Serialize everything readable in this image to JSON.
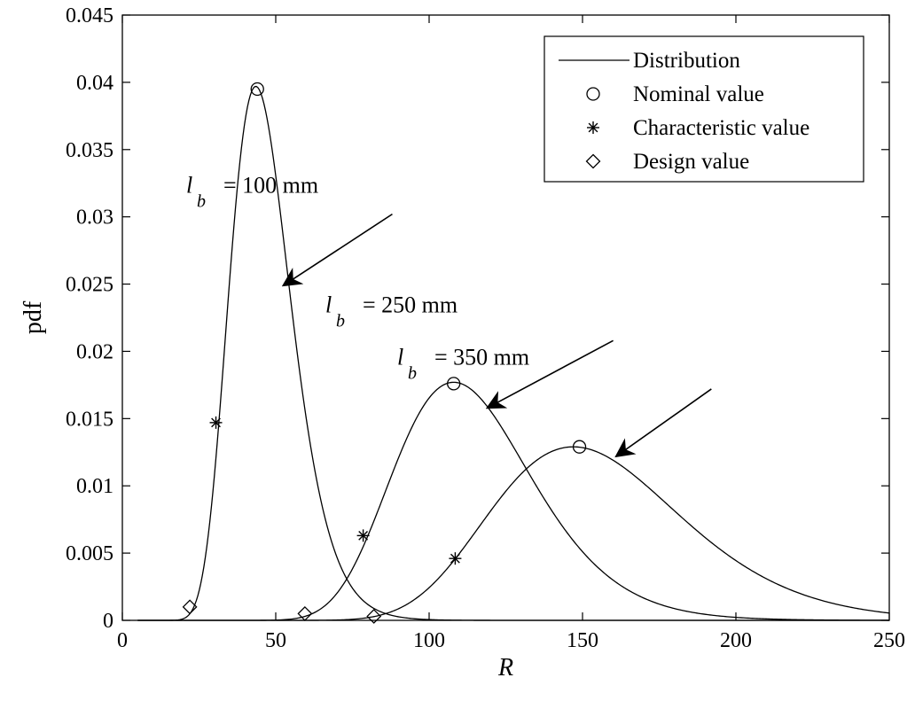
{
  "chart_data": {
    "type": "line",
    "title": "",
    "xlabel": "R",
    "ylabel": "pdf",
    "xlim": [
      0,
      250
    ],
    "ylim": [
      0,
      0.045
    ],
    "x_ticks": [
      0,
      50,
      100,
      150,
      200,
      250
    ],
    "y_ticks": [
      0,
      0.005,
      0.01,
      0.015,
      0.02,
      0.025,
      0.03,
      0.035,
      0.04,
      0.045
    ],
    "x_tick_labels": [
      "0",
      "50",
      "100",
      "150",
      "200",
      "250"
    ],
    "y_tick_labels": [
      "0",
      "0.005",
      "0.01",
      "0.015",
      "0.02",
      "0.025",
      "0.03",
      "0.035",
      "0.04",
      "0.045"
    ],
    "grid": false,
    "legend_position": "top-right",
    "legend": {
      "entries": [
        {
          "label": "Distribution",
          "marker": "line"
        },
        {
          "label": "Nominal value",
          "marker": "circle"
        },
        {
          "label": "Characteristic value",
          "marker": "asterisk"
        },
        {
          "label": "Design value",
          "marker": "diamond"
        }
      ]
    },
    "series": [
      {
        "curve": {
          "mode": 43.5,
          "sigma": 10,
          "peak": 0.0397
        },
        "nominal": {
          "x": 44,
          "y": 0.0395
        },
        "characteristic": {
          "x": 30.5,
          "y": 0.0147
        },
        "design": {
          "x": 22,
          "y": 0.001
        }
      },
      {
        "curve": {
          "mode": 108,
          "sigma": 22.5,
          "peak": 0.0177
        },
        "nominal": {
          "x": 108,
          "y": 0.0176
        },
        "characteristic": {
          "x": 78.5,
          "y": 0.0063
        },
        "design": {
          "x": 59.5,
          "y": 0.0005
        }
      },
      {
        "curve": {
          "mode": 147,
          "sigma": 31,
          "peak": 0.0129
        },
        "nominal": {
          "x": 149,
          "y": 0.0129
        },
        "characteristic": {
          "x": 108.5,
          "y": 0.0046
        },
        "design": {
          "x": 82,
          "y": 0.0003
        }
      }
    ],
    "annotations": [
      {
        "var": "l",
        "sub": "b",
        "text": "= 100 mm",
        "label_x": 210,
        "label_y": 0.0318,
        "arrow_from": [
          88,
          0.0302
        ],
        "arrow_to": [
          52.5,
          0.0249
        ]
      },
      {
        "var": "l",
        "sub": "b",
        "text": "= 250 mm",
        "label_x": 367,
        "label_y": 0.0229,
        "arrow_from": [
          160,
          0.0208
        ],
        "arrow_to": [
          119,
          0.0158
        ]
      },
      {
        "var": "l",
        "sub": "b",
        "text": "= 350 mm",
        "label_x": 448,
        "label_y": 0.019,
        "arrow_from": [
          192,
          0.0172
        ],
        "arrow_to": [
          161,
          0.0122
        ]
      }
    ]
  }
}
